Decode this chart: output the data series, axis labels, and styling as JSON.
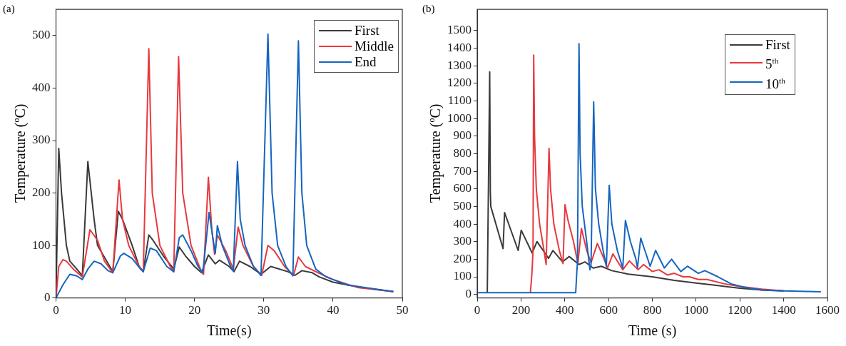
{
  "chart_data": [
    {
      "type": "line",
      "annotations": [
        "(a)"
      ],
      "xlabel": "Time(s)",
      "ylabel": "Temperature ($^{o}$C)",
      "xlim": [
        0,
        50
      ],
      "xticks": [
        0,
        10,
        20,
        30,
        40,
        50
      ],
      "ylim": [
        0,
        550
      ],
      "yticks": [
        0,
        100,
        200,
        300,
        400,
        500
      ],
      "legend": "top right",
      "series": [
        {
          "name": "First",
          "color": "#3a3a3a",
          "x": [
            0,
            0.4,
            0.8,
            1.5,
            2,
            3,
            3.8,
            4.6,
            5.5,
            6,
            8.2,
            9,
            9.6,
            11,
            12,
            12.6,
            13.4,
            14,
            15.5,
            17,
            17.8,
            18.7,
            20,
            21,
            22,
            23,
            23.6,
            25,
            25.7,
            26.5,
            28,
            29.6,
            31,
            33.5,
            34.5,
            35.5,
            37,
            38,
            40,
            44,
            48.7
          ],
          "values": [
            0,
            285,
            200,
            100,
            70,
            55,
            42,
            260,
            150,
            100,
            50,
            165,
            150,
            100,
            60,
            50,
            120,
            110,
            80,
            55,
            97,
            80,
            60,
            48,
            82,
            65,
            72,
            60,
            50,
            70,
            60,
            45,
            60,
            50,
            43,
            52,
            48,
            40,
            30,
            20,
            12
          ]
        },
        {
          "name": "Middle",
          "color": "#e8383d",
          "x": [
            0,
            0.4,
            1,
            1.5,
            2.5,
            3.8,
            4.9,
            6,
            7,
            8.2,
            9.1,
            9.6,
            10.5,
            12,
            12.6,
            13.4,
            13.9,
            15,
            16.5,
            17,
            17.7,
            18.3,
            19.5,
            21,
            21.3,
            22,
            22.5,
            22.9,
            23.3,
            24.5,
            25.6,
            26.3,
            27,
            28.5,
            29.7,
            30.6,
            31.5,
            33,
            34.3,
            35,
            36,
            38,
            40,
            43.5,
            48.7
          ],
          "values": [
            0,
            60,
            73,
            70,
            55,
            40,
            130,
            110,
            70,
            48,
            225,
            150,
            100,
            60,
            50,
            475,
            200,
            100,
            60,
            50,
            460,
            200,
            100,
            50,
            45,
            230,
            130,
            83,
            120,
            90,
            55,
            135,
            100,
            60,
            43,
            100,
            90,
            60,
            43,
            78,
            60,
            47,
            35,
            20,
            12
          ]
        },
        {
          "name": "End",
          "color": "#1565c0",
          "x": [
            0,
            1,
            2,
            3,
            3.8,
            4.6,
            5.5,
            6.5,
            7.5,
            8.2,
            9.3,
            9.8,
            11,
            12.2,
            12.6,
            13.6,
            14.5,
            16,
            17,
            17.8,
            18.3,
            19.5,
            20.5,
            21.2,
            22.1,
            22.7,
            23,
            23.3,
            24,
            25.2,
            25.6,
            26.2,
            26.6,
            27.3,
            28.5,
            29.6,
            30.6,
            31.2,
            32,
            33.2,
            34.2,
            35,
            35.5,
            36.2,
            37.5,
            39,
            42,
            48.7
          ],
          "values": [
            0,
            25,
            45,
            42,
            35,
            55,
            70,
            65,
            52,
            48,
            80,
            85,
            75,
            55,
            50,
            95,
            90,
            60,
            50,
            115,
            120,
            90,
            60,
            48,
            163,
            110,
            85,
            138,
            100,
            60,
            52,
            260,
            150,
            100,
            60,
            43,
            503,
            200,
            100,
            60,
            42,
            490,
            200,
            100,
            55,
            40,
            25,
            12
          ]
        }
      ]
    },
    {
      "type": "line",
      "annotations": [
        "(b)"
      ],
      "xlabel": "Time (s)",
      "ylabel": "Temperature ($^{o}$C)",
      "xlim": [
        0,
        1600
      ],
      "xticks": [
        0,
        200,
        400,
        600,
        800,
        1000,
        1200,
        1400,
        1600
      ],
      "ylim": [
        -20,
        1620
      ],
      "yticks": [
        0,
        100,
        200,
        300,
        400,
        500,
        600,
        700,
        800,
        900,
        1000,
        1100,
        1200,
        1300,
        1400,
        1500
      ],
      "legend": "top right",
      "series": [
        {
          "name": "First",
          "color": "#3a3a3a",
          "x": [
            46,
            57,
            60,
            62,
            118,
            125,
            187,
            201,
            251,
            273,
            326,
            346,
            390,
            420,
            465,
            492,
            530,
            567,
            615,
            690,
            800,
            900,
            1000,
            1100,
            1200,
            1300,
            1400
          ],
          "values": [
            10,
            1265,
            580,
            500,
            260,
            465,
            250,
            365,
            235,
            300,
            205,
            250,
            185,
            215,
            170,
            185,
            150,
            160,
            135,
            115,
            100,
            80,
            65,
            50,
            35,
            25,
            20
          ]
        },
        {
          "name": "5$^{th}$",
          "color": "#e8383d",
          "x": [
            243,
            250,
            255,
            258,
            262,
            270,
            285,
            305,
            315,
            328,
            335,
            350,
            375,
            392,
            401,
            415,
            440,
            460,
            476,
            500,
            520,
            549,
            580,
            595,
            620,
            655,
            665,
            695,
            735,
            760,
            800,
            830,
            870,
            900,
            940,
            970,
            1010,
            1050,
            1130,
            1200,
            1300,
            1400
          ],
          "values": [
            10,
            120,
            250,
            1360,
            900,
            600,
            400,
            250,
            170,
            830,
            600,
            400,
            250,
            175,
            510,
            420,
            300,
            175,
            375,
            250,
            180,
            290,
            200,
            150,
            230,
            160,
            140,
            190,
            140,
            170,
            130,
            140,
            110,
            120,
            100,
            100,
            85,
            85,
            60,
            45,
            30,
            20
          ]
        },
        {
          "name": "10$^{th}$",
          "color": "#1565c0",
          "x": [
            0,
            450,
            455,
            458,
            465,
            470,
            480,
            500,
            515,
            520,
            532,
            540,
            555,
            575,
            590,
            603,
            615,
            640,
            665,
            677,
            700,
            725,
            732,
            747,
            790,
            815,
            855,
            888,
            930,
            960,
            1010,
            1040,
            1100,
            1160,
            1220,
            1300,
            1400,
            1570
          ],
          "values": [
            10,
            10,
            130,
            180,
            1425,
            800,
            500,
            300,
            140,
            170,
            1095,
            600,
            400,
            250,
            160,
            620,
            400,
            250,
            150,
            420,
            300,
            200,
            150,
            320,
            160,
            250,
            150,
            200,
            130,
            160,
            120,
            135,
            100,
            60,
            40,
            25,
            20,
            15
          ]
        }
      ]
    }
  ]
}
